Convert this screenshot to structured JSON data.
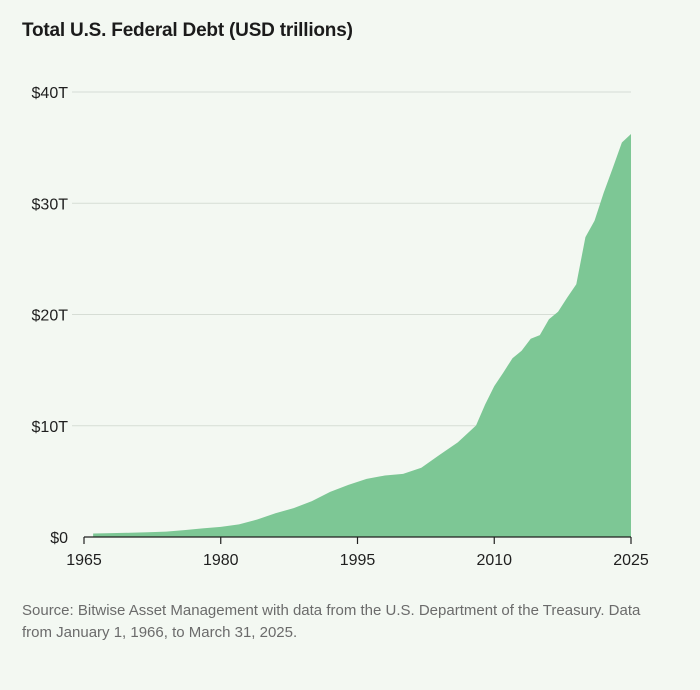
{
  "chart_data": {
    "type": "area",
    "title": "Total U.S. Federal Debt (USD trillions)",
    "xlabel": "",
    "ylabel": "",
    "xlim": [
      1965,
      2025
    ],
    "ylim": [
      0,
      40
    ],
    "x_ticks": [
      "1965",
      "1980",
      "1995",
      "2010",
      "2025"
    ],
    "y_ticks": [
      "$0",
      "$10T",
      "$20T",
      "$30T",
      "$40T"
    ],
    "grid": "horizontal",
    "area_color": "#7dc795",
    "series": [
      {
        "x": [
          1966,
          1968,
          1970,
          1972,
          1974,
          1976,
          1978,
          1980,
          1982,
          1984,
          1986,
          1988,
          1990,
          1992,
          1994,
          1996,
          1998,
          2000,
          2002,
          2004,
          2006,
          2008,
          2009,
          2010,
          2011,
          2012,
          2013,
          2014,
          2015,
          2016,
          2017,
          2018,
          2019,
          2020,
          2021,
          2022,
          2023,
          2024,
          2025
        ],
        "values": [
          0.32,
          0.35,
          0.38,
          0.43,
          0.48,
          0.62,
          0.78,
          0.91,
          1.14,
          1.57,
          2.13,
          2.6,
          3.23,
          4.06,
          4.69,
          5.22,
          5.53,
          5.67,
          6.23,
          7.38,
          8.51,
          10.02,
          11.91,
          13.56,
          14.79,
          16.07,
          16.74,
          17.82,
          18.15,
          19.57,
          20.25,
          21.52,
          22.72,
          26.95,
          28.43,
          30.93,
          33.17,
          35.46,
          36.22
        ]
      }
    ],
    "source": "Source: Bitwise Asset Management with data from the U.S. Department of the Treasury. Data from January 1, 1966, to March 31, 2025."
  }
}
